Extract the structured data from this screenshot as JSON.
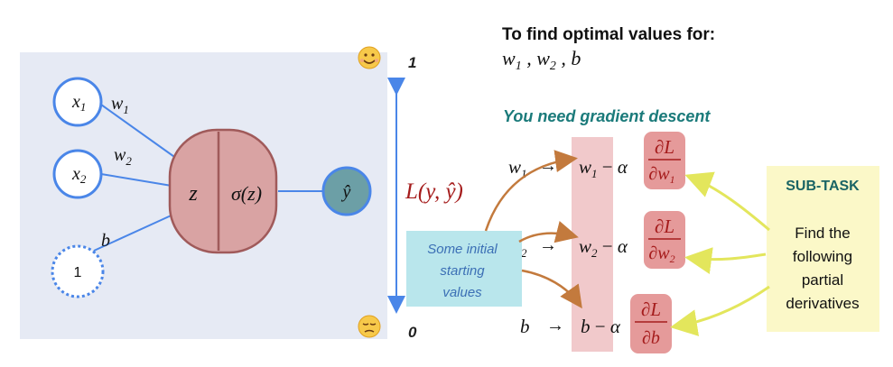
{
  "colors": {
    "panel_bg": "#e6eaf4",
    "node_stroke": "#4a86e8",
    "output_fill": "#6c9fa6",
    "neuron_fill": "#d9a3a3",
    "neuron_stroke": "#a05a5a",
    "edge": "#4a86e8",
    "loss_text": "#a51c1c",
    "teal_text": "#1a7a7a",
    "pink_band": "#f1c9cb",
    "deriv_fill": "#e59a9a",
    "callout_fill": "#b9e6ec",
    "callout_text": "#3b6fb5",
    "subtask_fill": "#fbf8c8",
    "arrow_brown": "#c37a3d",
    "arrow_yellow": "#e8ec7a",
    "axis_blue": "#4a86e8"
  },
  "network": {
    "input_x1": "x1",
    "input_x2": "x2",
    "bias_node": "1",
    "weight_w1": "w1",
    "weight_w2": "w2",
    "weight_b": "b",
    "neuron_left": "z",
    "neuron_right": "σ(z)",
    "output": "ŷ"
  },
  "loss_axis": {
    "top_label": "1",
    "bottom_label": "0",
    "top_icon": "happy-face-icon",
    "bottom_icon": "sad-face-icon",
    "loss_label": "L(y, ŷ)"
  },
  "header": {
    "title": "To find optimal values for:",
    "vars": "w1 , w2 , b",
    "subtitle": "You need gradient descent"
  },
  "updates": [
    {
      "param": "w1",
      "lhs": "w1 − α",
      "num": "∂L",
      "den": "∂w1"
    },
    {
      "param": "w2",
      "lhs": "w2 − α",
      "num": "∂L",
      "den": "∂w2"
    },
    {
      "param": "b",
      "lhs": "b − α",
      "num": "∂L",
      "den": "∂b"
    }
  ],
  "callout": {
    "line1": "Some initial",
    "line2": "starting",
    "line3": "values"
  },
  "subtask": {
    "title": "SUB-TASK",
    "line1": "Find the",
    "line2": "following",
    "line3": "partial",
    "line4": "derivatives"
  }
}
